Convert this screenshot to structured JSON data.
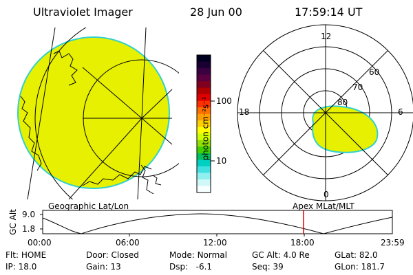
{
  "header": {
    "title": "Ultraviolet Imager",
    "date": "28 Jun 00",
    "time": "17:59:14 UT"
  },
  "left_panel": {
    "label": "Geographic Lat/Lon"
  },
  "right_panel": {
    "label": "Apex MLat/MLT",
    "mlt_labels": {
      "top": "12",
      "left": "18",
      "right": "6",
      "bottom": "0"
    },
    "lat_labels": [
      "60",
      "70",
      "80"
    ]
  },
  "colorbar": {
    "unit_label": "photon cm⁻²s⁻¹",
    "ticks": [
      "100",
      "10"
    ],
    "colors": [
      "#000020",
      "#1a0030",
      "#3a0040",
      "#5a0040",
      "#800020",
      "#b00000",
      "#e00000",
      "#ff3000",
      "#ff7000",
      "#ffa000",
      "#ffd000",
      "#ffff00",
      "#d0ff00",
      "#90e000",
      "#40d000",
      "#00c060",
      "#00d0c0",
      "#40e0e0",
      "#90f0f0",
      "#d0f8f8",
      "#f8ffff"
    ]
  },
  "altitude_plot": {
    "ylabel": "GC Alt",
    "yticks": [
      "9.0",
      "1.8"
    ],
    "xticks": [
      "00:00",
      "06:00",
      "12:00",
      "18:00",
      "23:59"
    ],
    "marker_color": "#e00000"
  },
  "info": {
    "row1": [
      {
        "label": "Flt:",
        "value": "HOME"
      },
      {
        "label": "Door:",
        "value": "Closed"
      },
      {
        "label": "Mode:",
        "value": "Normal"
      },
      {
        "label": "GC Alt:",
        "value": "4.0 Re"
      },
      {
        "label": "GLat:",
        "value": "82.0"
      }
    ],
    "row2": [
      {
        "label": "IP:",
        "value": "18.0"
      },
      {
        "label": "Gain:",
        "value": "13"
      },
      {
        "label": "Dsp:",
        "value": "-6.1"
      },
      {
        "label": "Seq:",
        "value": "39"
      },
      {
        "label": "GLon:",
        "value": "181.7"
      }
    ]
  },
  "colors": {
    "emission": "#e6f000",
    "emission_edge": "#30d0d0"
  }
}
